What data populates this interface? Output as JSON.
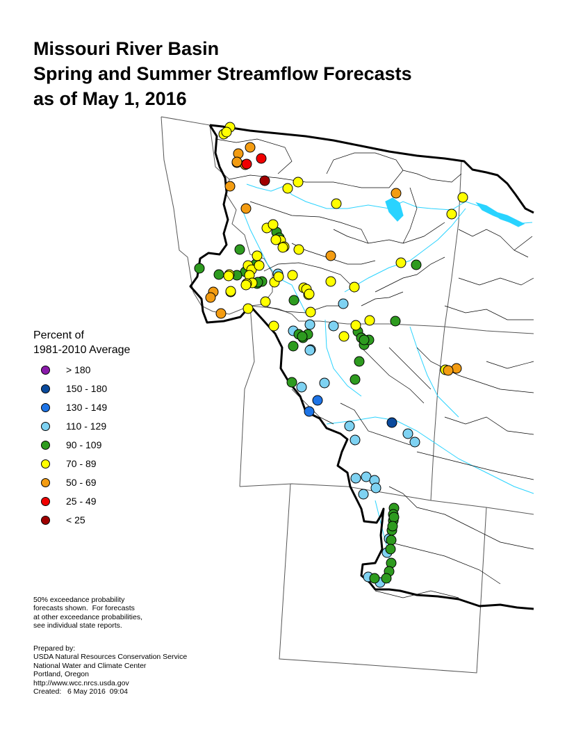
{
  "title": {
    "line1": "Missouri River Basin",
    "line2": "Spring and Summer Streamflow Forecasts",
    "line3": "as of May 1, 2016"
  },
  "legend": {
    "title_line1": "Percent of",
    "title_line2": "1981-2010 Average",
    "classes": [
      {
        "label": "> 180",
        "color": "#8a1aaa"
      },
      {
        "label": "150 - 180",
        "color": "#0a4a9c"
      },
      {
        "label": "130 - 149",
        "color": "#1e74e6"
      },
      {
        "label": "110 - 129",
        "color": "#7ed2f2"
      },
      {
        "label": "90 - 109",
        "color": "#2e9b1f"
      },
      {
        "label": "70 - 89",
        "color": "#ffff00"
      },
      {
        "label": "50 - 69",
        "color": "#f39c12"
      },
      {
        "label": "25 - 49",
        "color": "#f00000"
      },
      {
        "label": "< 25",
        "color": "#a00000"
      }
    ]
  },
  "note": {
    "line1": "50% exceedance probability",
    "line2": "forecasts shown.  For forecasts",
    "line3": "at other exceedance probabilities,",
    "line4": "see individual state reports."
  },
  "credits": {
    "line1": "Prepared by:",
    "line2": "USDA Natural Resources Conservation Service",
    "line3": "National Water and Climate Center",
    "line4": "Portland, Oregon",
    "line5": "http://www.wcc.nrcs.usda.gov",
    "line6": "Created:   6 May 2016  09:04"
  },
  "map": {
    "colors": {
      "state_lines": "#555555",
      "basin_outline": "#000000",
      "rivers": "#29d3ff"
    },
    "forecast_sites_by_class": {
      "> 180": 0,
      "150 - 180": 1,
      "130 - 149": 2,
      "110 - 129": 22,
      "90 - 109": 40,
      "70 - 89": 45,
      "50 - 69": 14,
      "25 - 49": 2,
      "< 25": 1
    }
  }
}
